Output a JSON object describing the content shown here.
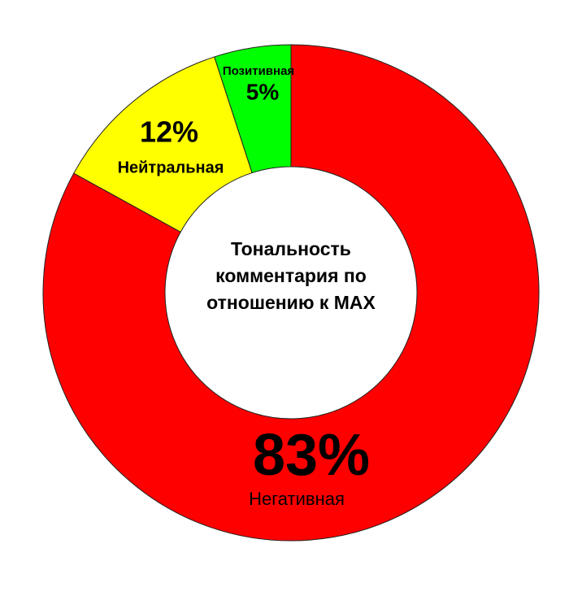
{
  "chart_data": {
    "type": "donut",
    "title": "Тональность комментария по отношению к MAX",
    "categories": [
      "Негативная",
      "Нейтральная",
      "Позитивная"
    ],
    "values": [
      83,
      12,
      5
    ],
    "value_labels": [
      "83%",
      "12%",
      "5%"
    ],
    "colors": [
      "#ff0000",
      "#ffff00",
      "#00ff00"
    ]
  }
}
